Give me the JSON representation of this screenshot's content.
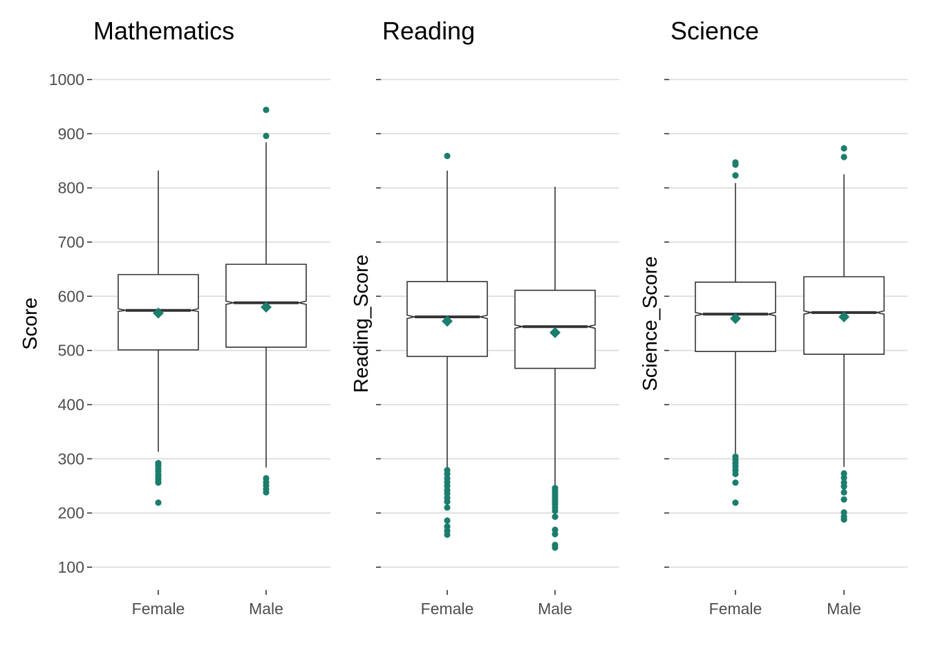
{
  "chart_data": [
    {
      "type": "boxplot",
      "title": "Mathematics",
      "ylabel": "Score",
      "ylim": [
        60,
        1050
      ],
      "yticks": [
        100,
        200,
        300,
        400,
        500,
        600,
        700,
        800,
        900,
        1000
      ],
      "show_ytick_labels": true,
      "categories": [
        "Female",
        "Male"
      ],
      "grid": true,
      "point_color": "#1b7d6c",
      "boxes": [
        {
          "category": "Female",
          "q1": 501,
          "median": 574,
          "q3": 640,
          "notch_low": 572,
          "notch_high": 577,
          "whisker_low": 313,
          "whisker_high": 832,
          "mean": 569,
          "outliers": [
            292,
            288,
            282,
            277,
            271,
            266,
            261,
            256,
            219
          ]
        },
        {
          "category": "Male",
          "q1": 506,
          "median": 588,
          "q3": 659,
          "notch_low": 585,
          "notch_high": 591,
          "whisker_low": 284,
          "whisker_high": 884,
          "mean": 580,
          "outliers": [
            264,
            257,
            251,
            244,
            238,
            896,
            944
          ]
        }
      ]
    },
    {
      "type": "boxplot",
      "title": "Reading",
      "ylabel": "Reading_Score",
      "ylim": [
        60,
        1050
      ],
      "yticks": [
        100,
        200,
        300,
        400,
        500,
        600,
        700,
        800,
        900,
        1000
      ],
      "show_ytick_labels": false,
      "categories": [
        "Female",
        "Male"
      ],
      "grid": true,
      "point_color": "#1b7d6c",
      "boxes": [
        {
          "category": "Female",
          "q1": 489,
          "median": 562,
          "q3": 627,
          "notch_low": 559,
          "notch_high": 565,
          "whisker_low": 283,
          "whisker_high": 832,
          "mean": 554,
          "outliers": [
            279,
            272,
            264,
            257,
            250,
            242,
            236,
            228,
            221,
            210,
            186,
            175,
            167,
            160,
            859
          ]
        },
        {
          "category": "Male",
          "q1": 467,
          "median": 544,
          "q3": 611,
          "notch_low": 541,
          "notch_high": 547,
          "whisker_low": 250,
          "whisker_high": 802,
          "mean": 533,
          "outliers": [
            246,
            241,
            236,
            231,
            226,
            221,
            216,
            210,
            204,
            193,
            169,
            161,
            141,
            136
          ]
        }
      ]
    },
    {
      "type": "boxplot",
      "title": "Science",
      "ylabel": "Science_Score",
      "ylim": [
        60,
        1050
      ],
      "yticks": [
        100,
        200,
        300,
        400,
        500,
        600,
        700,
        800,
        900,
        1000
      ],
      "show_ytick_labels": false,
      "categories": [
        "Female",
        "Male"
      ],
      "grid": true,
      "point_color": "#1b7d6c",
      "boxes": [
        {
          "category": "Female",
          "q1": 498,
          "median": 567,
          "q3": 626,
          "notch_low": 564,
          "notch_high": 570,
          "whisker_low": 310,
          "whisker_high": 809,
          "mean": 559,
          "outliers": [
            304,
            298,
            292,
            286,
            279,
            272,
            256,
            219,
            823,
            843,
            847
          ]
        },
        {
          "category": "Male",
          "q1": 493,
          "median": 570,
          "q3": 636,
          "notch_low": 567,
          "notch_high": 573,
          "whisker_low": 285,
          "whisker_high": 825,
          "mean": 562,
          "outliers": [
            273,
            265,
            256,
            249,
            238,
            225,
            201,
            193,
            188,
            857,
            873
          ]
        }
      ]
    }
  ]
}
